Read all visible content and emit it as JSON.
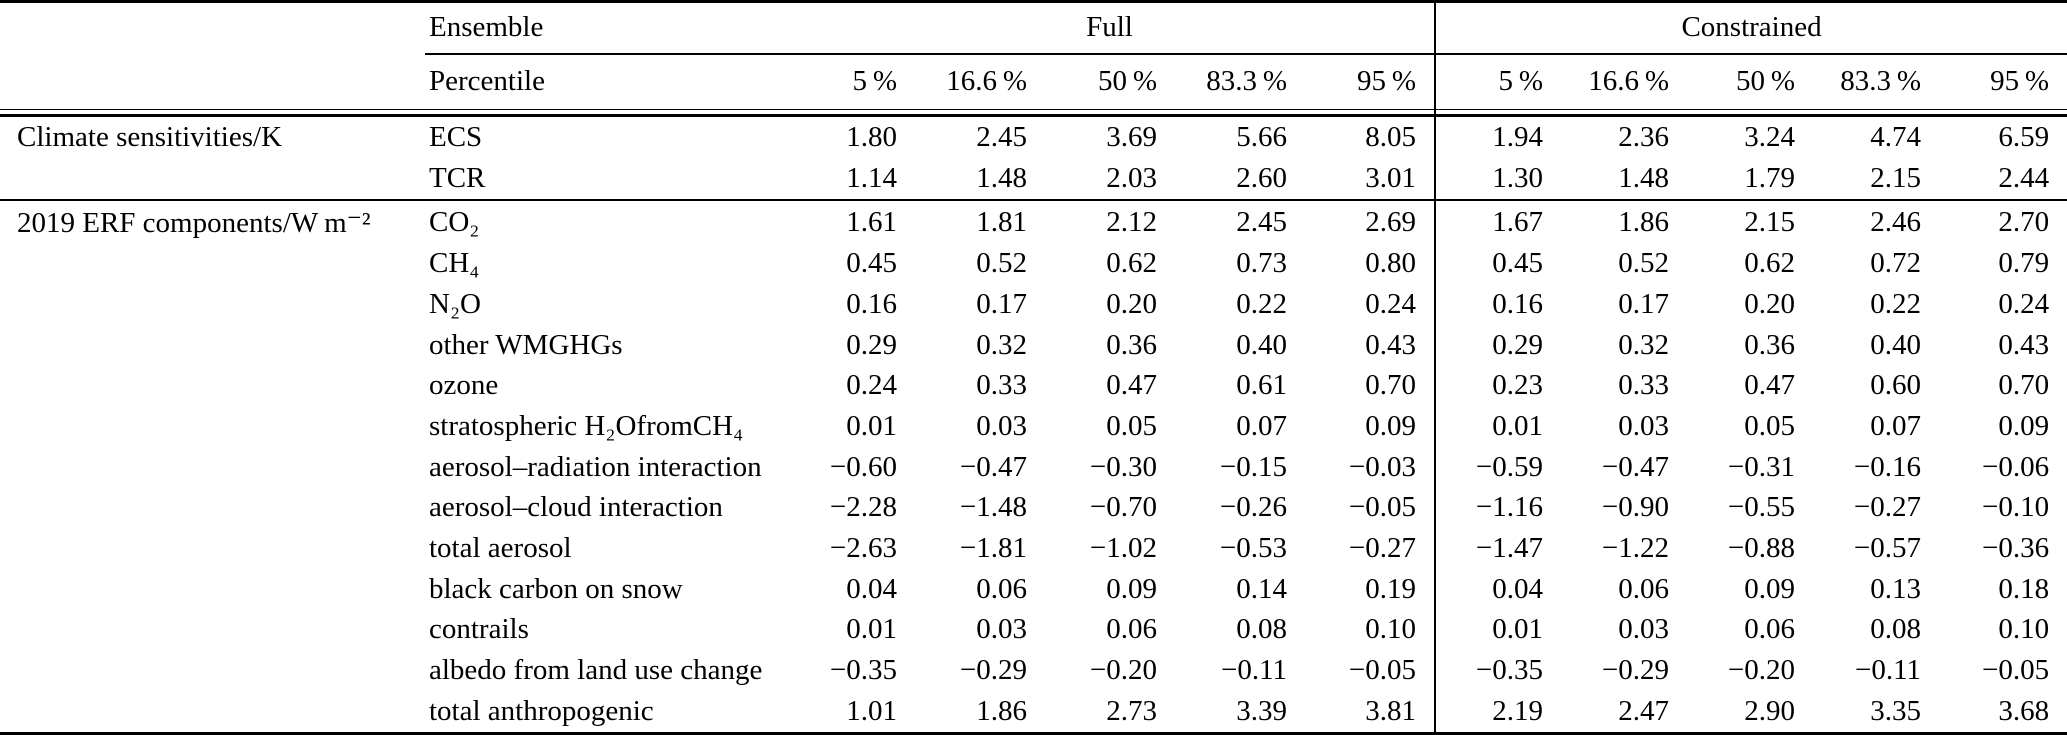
{
  "table": {
    "header": {
      "ensemble_label": "Ensemble",
      "percentile_label": "Percentile",
      "groups": [
        {
          "name": "Full",
          "percentiles": [
            "5 %",
            "16.6 %",
            "50 %",
            "83.3 %",
            "95 %"
          ]
        },
        {
          "name": "Constrained",
          "percentiles": [
            "5 %",
            "16.6 %",
            "50 %",
            "83.3 %",
            "95 %"
          ]
        }
      ]
    },
    "sections": [
      {
        "label": "Climate sensitivities/K",
        "rows": [
          {
            "label": "ECS",
            "full": [
              "1.80",
              "2.45",
              "3.69",
              "5.66",
              "8.05"
            ],
            "constrained": [
              "1.94",
              "2.36",
              "3.24",
              "4.74",
              "6.59"
            ]
          },
          {
            "label": "TCR",
            "full": [
              "1.14",
              "1.48",
              "2.03",
              "2.60",
              "3.01"
            ],
            "constrained": [
              "1.30",
              "1.48",
              "1.79",
              "2.15",
              "2.44"
            ]
          }
        ]
      },
      {
        "label": "2019 ERF components/W m⁻²",
        "rows": [
          {
            "label": "CO₂",
            "full": [
              "1.61",
              "1.81",
              "2.12",
              "2.45",
              "2.69"
            ],
            "constrained": [
              "1.67",
              "1.86",
              "2.15",
              "2.46",
              "2.70"
            ]
          },
          {
            "label": "CH₄",
            "full": [
              "0.45",
              "0.52",
              "0.62",
              "0.73",
              "0.80"
            ],
            "constrained": [
              "0.45",
              "0.52",
              "0.62",
              "0.72",
              "0.79"
            ]
          },
          {
            "label": "N₂O",
            "full": [
              "0.16",
              "0.17",
              "0.20",
              "0.22",
              "0.24"
            ],
            "constrained": [
              "0.16",
              "0.17",
              "0.20",
              "0.22",
              "0.24"
            ]
          },
          {
            "label": "other WMGHGs",
            "full": [
              "0.29",
              "0.32",
              "0.36",
              "0.40",
              "0.43"
            ],
            "constrained": [
              "0.29",
              "0.32",
              "0.36",
              "0.40",
              "0.43"
            ]
          },
          {
            "label": "ozone",
            "full": [
              "0.24",
              "0.33",
              "0.47",
              "0.61",
              "0.70"
            ],
            "constrained": [
              "0.23",
              "0.33",
              "0.47",
              "0.60",
              "0.70"
            ]
          },
          {
            "label": "stratospheric H₂OfromCH₄",
            "full": [
              "0.01",
              "0.03",
              "0.05",
              "0.07",
              "0.09"
            ],
            "constrained": [
              "0.01",
              "0.03",
              "0.05",
              "0.07",
              "0.09"
            ]
          },
          {
            "label": "aerosol–radiation interaction",
            "full": [
              "−0.60",
              "−0.47",
              "−0.30",
              "−0.15",
              "−0.03"
            ],
            "constrained": [
              "−0.59",
              "−0.47",
              "−0.31",
              "−0.16",
              "−0.06"
            ]
          },
          {
            "label": "aerosol–cloud interaction",
            "full": [
              "−2.28",
              "−1.48",
              "−0.70",
              "−0.26",
              "−0.05"
            ],
            "constrained": [
              "−1.16",
              "−0.90",
              "−0.55",
              "−0.27",
              "−0.10"
            ]
          },
          {
            "label": "total aerosol",
            "full": [
              "−2.63",
              "−1.81",
              "−1.02",
              "−0.53",
              "−0.27"
            ],
            "constrained": [
              "−1.47",
              "−1.22",
              "−0.88",
              "−0.57",
              "−0.36"
            ]
          },
          {
            "label": "black carbon on snow",
            "full": [
              "0.04",
              "0.06",
              "0.09",
              "0.14",
              "0.19"
            ],
            "constrained": [
              "0.04",
              "0.06",
              "0.09",
              "0.13",
              "0.18"
            ]
          },
          {
            "label": "contrails",
            "full": [
              "0.01",
              "0.03",
              "0.06",
              "0.08",
              "0.10"
            ],
            "constrained": [
              "0.01",
              "0.03",
              "0.06",
              "0.08",
              "0.10"
            ]
          },
          {
            "label": "albedo from land use change",
            "full": [
              "−0.35",
              "−0.29",
              "−0.20",
              "−0.11",
              "−0.05"
            ],
            "constrained": [
              "−0.35",
              "−0.29",
              "−0.20",
              "−0.11",
              "−0.05"
            ]
          },
          {
            "label": "total anthropogenic",
            "full": [
              "1.01",
              "1.86",
              "2.73",
              "3.39",
              "3.81"
            ],
            "constrained": [
              "2.19",
              "2.47",
              "2.90",
              "3.35",
              "3.68"
            ]
          }
        ]
      }
    ]
  }
}
